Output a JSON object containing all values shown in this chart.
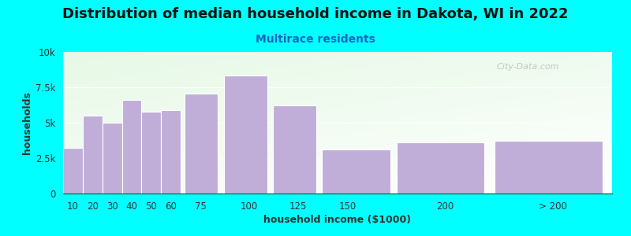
{
  "title": "Distribution of median household income in Dakota, WI in 2022",
  "subtitle": "Multirace residents",
  "xlabel": "household income ($1000)",
  "ylabel": "households",
  "background_color": "#00FFFF",
  "bar_color": "#c0aed8",
  "bar_edgecolor": "#ffffff",
  "categories": [
    "10",
    "20",
    "30",
    "40",
    "50",
    "60",
    "75",
    "100",
    "125",
    "150",
    "200",
    "> 200"
  ],
  "values": [
    3200,
    5500,
    5000,
    6600,
    5800,
    5900,
    7050,
    8350,
    6200,
    3100,
    3600,
    3700
  ],
  "ylim": [
    0,
    10000
  ],
  "yticks": [
    0,
    2500,
    5000,
    7500,
    10000
  ],
  "ytick_labels": [
    "0",
    "2.5k",
    "5k",
    "7.5k",
    "10k"
  ],
  "title_fontsize": 13,
  "subtitle_fontsize": 10,
  "subtitle_color": "#1565C0",
  "axis_label_fontsize": 9,
  "tick_fontsize": 8.5,
  "watermark_text": "City-Data.com",
  "bar_left_edges": [
    5,
    15,
    25,
    35,
    45,
    55,
    67,
    87,
    112,
    137,
    175,
    225
  ],
  "bar_widths": [
    10,
    10,
    10,
    10,
    10,
    10,
    17,
    22,
    22,
    35,
    45,
    55
  ],
  "xlim": [
    5,
    285
  ],
  "xtick_positions": [
    10,
    20,
    30,
    40,
    50,
    60,
    75,
    100,
    125,
    150,
    200,
    255
  ],
  "xtick_labels": [
    "10",
    "20",
    "30",
    "40",
    "50",
    "60",
    "75",
    "100",
    "125",
    "150",
    "200",
    "> 200"
  ]
}
